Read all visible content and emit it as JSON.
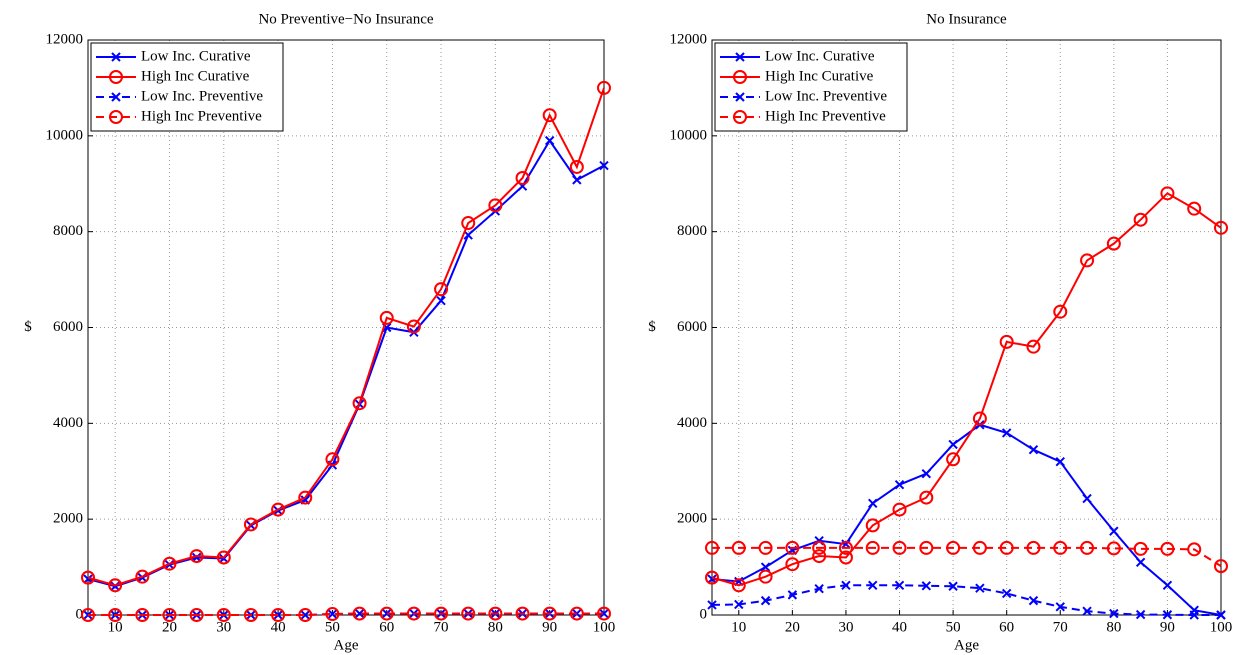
{
  "chart_data": [
    {
      "type": "line",
      "title": "No Preventive−No Insurance",
      "xlabel": "Age",
      "ylabel": "$",
      "x": [
        5,
        10,
        15,
        20,
        25,
        30,
        35,
        40,
        45,
        50,
        55,
        60,
        65,
        70,
        75,
        80,
        85,
        90,
        95,
        100
      ],
      "xlim": [
        5,
        100
      ],
      "xticks": [
        10,
        20,
        30,
        40,
        50,
        60,
        70,
        80,
        90,
        100
      ],
      "ylim": [
        0,
        12000
      ],
      "yticks": [
        0,
        2000,
        4000,
        6000,
        8000,
        10000,
        12000
      ],
      "grid": true,
      "legend": "upper-left",
      "series": [
        {
          "name": "Low Inc. Curative",
          "color": "#0000ff",
          "marker": "x",
          "linestyle": "solid",
          "values": [
            750,
            600,
            780,
            1050,
            1200,
            1180,
            1870,
            2180,
            2400,
            3130,
            4400,
            6000,
            5900,
            6560,
            7930,
            8430,
            8950,
            9900,
            9080,
            9380
          ]
        },
        {
          "name": "High Inc Curative",
          "color": "#ff0000",
          "marker": "o",
          "linestyle": "solid",
          "values": [
            780,
            620,
            800,
            1070,
            1230,
            1200,
            1890,
            2200,
            2450,
            3250,
            4420,
            6200,
            6020,
            6800,
            8180,
            8550,
            9120,
            10430,
            9350,
            11000
          ]
        },
        {
          "name": "Low Inc. Preventive",
          "color": "#0000ff",
          "marker": "x",
          "linestyle": "dashed",
          "values": [
            0,
            0,
            0,
            0,
            0,
            0,
            0,
            0,
            0,
            20,
            30,
            30,
            30,
            30,
            30,
            30,
            30,
            30,
            30,
            30
          ]
        },
        {
          "name": "High Inc Preventive",
          "color": "#ff0000",
          "marker": "o",
          "linestyle": "dashed",
          "values": [
            0,
            0,
            0,
            0,
            0,
            0,
            0,
            0,
            0,
            20,
            30,
            30,
            30,
            30,
            30,
            30,
            30,
            30,
            30,
            30
          ]
        }
      ]
    },
    {
      "type": "line",
      "title": "No Insurance",
      "xlabel": "Age",
      "ylabel": "$",
      "x": [
        5,
        10,
        15,
        20,
        25,
        30,
        35,
        40,
        45,
        50,
        55,
        60,
        65,
        70,
        75,
        80,
        85,
        90,
        95,
        100
      ],
      "xlim": [
        5,
        100
      ],
      "xticks": [
        10,
        20,
        30,
        40,
        50,
        60,
        70,
        80,
        90,
        100
      ],
      "ylim": [
        0,
        12000
      ],
      "yticks": [
        0,
        2000,
        4000,
        6000,
        8000,
        10000,
        12000
      ],
      "grid": true,
      "legend": "upper-left",
      "series": [
        {
          "name": "Low Inc. Curative",
          "color": "#0000ff",
          "marker": "x",
          "linestyle": "solid",
          "values": [
            750,
            700,
            1000,
            1350,
            1550,
            1480,
            2330,
            2720,
            2950,
            3560,
            3970,
            3800,
            3450,
            3200,
            2430,
            1750,
            1100,
            620,
            100,
            0
          ]
        },
        {
          "name": "High Inc Curative",
          "color": "#ff0000",
          "marker": "o",
          "linestyle": "solid",
          "values": [
            780,
            620,
            800,
            1060,
            1230,
            1200,
            1870,
            2200,
            2450,
            3250,
            4100,
            5700,
            5600,
            6330,
            7400,
            7750,
            8250,
            8800,
            8480,
            8080
          ]
        },
        {
          "name": "Low Inc. Preventive",
          "color": "#0000ff",
          "marker": "x",
          "linestyle": "dashed",
          "values": [
            210,
            220,
            300,
            420,
            550,
            620,
            620,
            620,
            610,
            600,
            560,
            450,
            300,
            170,
            80,
            30,
            10,
            5,
            0,
            0
          ]
        },
        {
          "name": "High Inc Preventive",
          "color": "#ff0000",
          "marker": "o",
          "linestyle": "dashed",
          "values": [
            1400,
            1400,
            1400,
            1400,
            1400,
            1400,
            1400,
            1400,
            1400,
            1400,
            1400,
            1400,
            1400,
            1400,
            1400,
            1390,
            1380,
            1380,
            1370,
            1020
          ]
        }
      ]
    }
  ]
}
